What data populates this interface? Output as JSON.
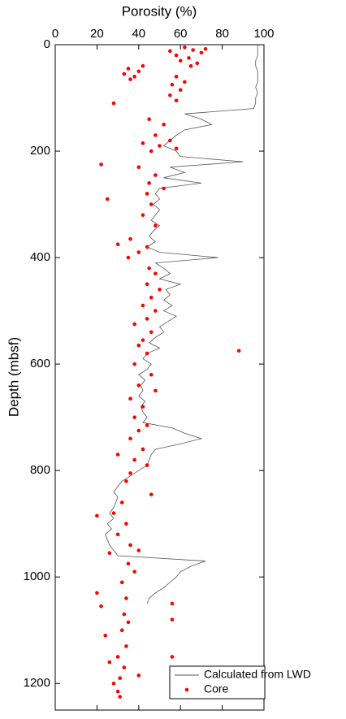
{
  "chart_data": {
    "type": "depth-plot",
    "xlabel": "Porosity (%)",
    "ylabel": "Depth (mbsf)",
    "xlim": [
      0,
      100
    ],
    "xticks": [
      0,
      20,
      40,
      60,
      80,
      100
    ],
    "ylim": [
      0,
      1250
    ],
    "yticks": [
      0,
      200,
      400,
      600,
      800,
      1000,
      1200
    ],
    "y_inverted": true,
    "legend": "lower right",
    "series": [
      {
        "name": "Calculated from LWD",
        "kind": "line",
        "color": "#555555",
        "x": [
          97,
          97,
          97,
          96,
          96,
          97,
          97,
          97,
          96,
          97,
          96,
          96,
          95,
          62,
          70,
          75,
          62,
          58,
          55,
          52,
          58,
          60,
          90,
          55,
          62,
          52,
          70,
          50,
          48,
          50,
          47,
          50,
          48,
          46,
          50,
          47,
          45,
          48,
          44,
          50,
          78,
          48,
          52,
          55,
          50,
          60,
          53,
          55,
          52,
          56,
          52,
          58,
          54,
          50,
          52,
          48,
          45,
          50,
          44,
          42,
          46,
          44,
          40,
          43,
          41,
          42,
          40,
          43,
          41,
          42,
          44,
          42,
          56,
          62,
          70,
          60,
          48,
          46,
          45,
          44,
          40,
          36,
          32,
          30,
          28,
          30,
          29,
          28,
          26,
          28,
          25,
          27,
          24,
          25,
          26,
          28,
          30,
          72,
          65,
          60,
          58,
          55,
          52,
          48,
          45,
          44
        ],
        "y": [
          0,
          10,
          20,
          30,
          40,
          50,
          60,
          70,
          80,
          90,
          100,
          110,
          120,
          130,
          140,
          150,
          160,
          170,
          180,
          190,
          200,
          210,
          220,
          230,
          240,
          250,
          260,
          270,
          280,
          290,
          300,
          310,
          320,
          330,
          340,
          350,
          360,
          370,
          380,
          390,
          400,
          410,
          420,
          430,
          440,
          450,
          460,
          470,
          480,
          490,
          500,
          510,
          520,
          530,
          540,
          550,
          560,
          570,
          580,
          590,
          600,
          610,
          620,
          630,
          640,
          650,
          660,
          670,
          680,
          690,
          700,
          710,
          720,
          730,
          740,
          750,
          760,
          770,
          780,
          790,
          800,
          810,
          820,
          830,
          840,
          850,
          860,
          870,
          880,
          890,
          900,
          910,
          920,
          930,
          940,
          950,
          960,
          970,
          980,
          990,
          1000,
          1010,
          1020,
          1030,
          1040,
          1050
        ]
      },
      {
        "name": "Core",
        "kind": "scatter",
        "color": "#ff0000",
        "x": [
          62,
          66,
          70,
          58,
          64,
          72,
          60,
          68,
          55,
          65,
          35,
          40,
          33,
          38,
          42,
          36,
          58,
          62,
          56,
          60,
          55,
          58,
          28,
          45,
          52,
          48,
          55,
          42,
          50,
          58,
          46,
          22,
          40,
          48,
          45,
          52,
          44,
          25,
          46,
          42,
          48,
          36,
          30,
          44,
          40,
          35,
          45,
          48,
          44,
          50,
          46,
          42,
          48,
          44,
          38,
          46,
          42,
          40,
          88,
          44,
          38,
          46,
          40,
          48,
          36,
          42,
          38,
          44,
          40,
          36,
          42,
          30,
          38,
          44,
          36,
          34,
          46,
          32,
          28,
          20,
          34,
          30,
          36,
          40,
          26,
          35,
          38,
          32,
          20,
          34,
          56,
          22,
          33,
          35,
          56,
          32,
          24,
          34,
          30,
          26,
          56,
          33,
          31,
          28,
          40,
          30,
          31
        ],
        "y": [
          5,
          10,
          15,
          20,
          25,
          8,
          30,
          35,
          12,
          40,
          45,
          50,
          55,
          60,
          40,
          65,
          60,
          70,
          75,
          85,
          95,
          105,
          110,
          140,
          150,
          170,
          180,
          185,
          190,
          195,
          200,
          225,
          230,
          245,
          260,
          270,
          280,
          290,
          300,
          320,
          340,
          365,
          375,
          380,
          390,
          400,
          420,
          430,
          450,
          460,
          475,
          490,
          500,
          515,
          525,
          540,
          555,
          565,
          575,
          580,
          600,
          620,
          640,
          650,
          665,
          680,
          700,
          715,
          725,
          740,
          760,
          770,
          780,
          790,
          805,
          820,
          845,
          860,
          880,
          885,
          900,
          920,
          940,
          950,
          955,
          975,
          990,
          1010,
          1030,
          1040,
          1050,
          1055,
          1070,
          1085,
          1080,
          1100,
          1110,
          1130,
          1150,
          1160,
          1150,
          1170,
          1190,
          1200,
          1185,
          1215,
          1225
        ]
      }
    ]
  }
}
